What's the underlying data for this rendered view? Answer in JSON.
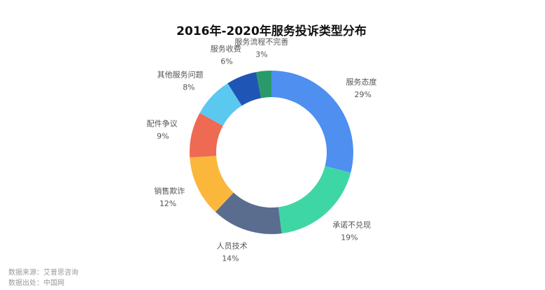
{
  "chart_data": {
    "type": "donut",
    "title": "2016年-2020年服务投诉类型分布",
    "categories": [
      "服务态度",
      "承诺不兑现",
      "人员技术",
      "销售欺诈",
      "配件争议",
      "其他服务问题",
      "服务收费",
      "服务流程不完善"
    ],
    "values": [
      29,
      19,
      14,
      12,
      9,
      8,
      6,
      3
    ],
    "value_labels": [
      "29%",
      "19%",
      "14%",
      "12%",
      "9%",
      "8%",
      "6%",
      "3%"
    ],
    "colors": [
      "#4e8ff0",
      "#3fd6a6",
      "#5a6d8f",
      "#fbb73b",
      "#ef6a52",
      "#5bc8f0",
      "#1f55b5",
      "#2a9a6b"
    ],
    "source": [
      "数据来源：艾普思咨询",
      "数据出处：中国网"
    ]
  }
}
